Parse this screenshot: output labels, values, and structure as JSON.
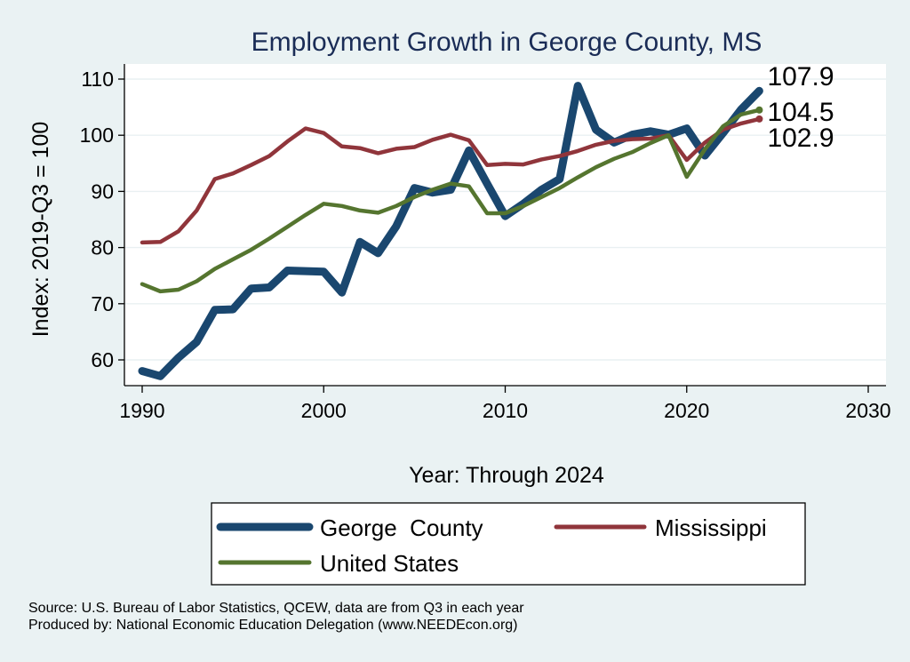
{
  "chart_data": {
    "type": "line",
    "title": "Employment Growth in George County, MS",
    "xlabel": "Year: Through 2024",
    "ylabel": "Index: 2019-Q3 = 100",
    "xlim": [
      1990,
      2030
    ],
    "ylim": [
      55,
      112
    ],
    "xticks": [
      1990,
      2000,
      2010,
      2020,
      2030
    ],
    "yticks": [
      60,
      70,
      80,
      90,
      100,
      110
    ],
    "grid": true,
    "x": [
      1990,
      1991,
      1992,
      1993,
      1994,
      1995,
      1996,
      1997,
      1998,
      1999,
      2000,
      2001,
      2002,
      2003,
      2004,
      2005,
      2006,
      2007,
      2008,
      2009,
      2010,
      2011,
      2012,
      2013,
      2014,
      2015,
      2016,
      2017,
      2018,
      2019,
      2020,
      2021,
      2022,
      2023,
      2024
    ],
    "series": [
      {
        "name": "George  County",
        "color": "#1a476f",
        "values": [
          58.0,
          57.1,
          60.4,
          63.2,
          68.9,
          69.0,
          72.7,
          72.9,
          75.9,
          75.8,
          75.7,
          72.0,
          81.0,
          79.0,
          83.8,
          90.6,
          89.8,
          90.3,
          97.3,
          91.4,
          85.6,
          87.8,
          90.3,
          92.2,
          108.8,
          101.0,
          98.7,
          100.1,
          100.7,
          100.1,
          101.2,
          96.4,
          100.4,
          104.6,
          107.9
        ],
        "end_label": "107.9"
      },
      {
        "name": "Mississippi",
        "color": "#90353b",
        "values": [
          80.9,
          81.0,
          82.9,
          86.6,
          92.2,
          93.2,
          94.7,
          96.3,
          98.9,
          101.2,
          100.4,
          98.0,
          97.7,
          96.8,
          97.6,
          97.9,
          99.2,
          100.1,
          99.1,
          94.7,
          94.9,
          94.8,
          95.7,
          96.3,
          97.2,
          98.3,
          99.0,
          99.3,
          99.4,
          100.0,
          95.6,
          98.7,
          101.0,
          102.1,
          102.9
        ],
        "end_label": "102.9"
      },
      {
        "name": "United States",
        "color": "#55752f",
        "values": [
          73.5,
          72.2,
          72.5,
          74.0,
          76.2,
          77.9,
          79.6,
          81.6,
          83.7,
          85.8,
          87.8,
          87.4,
          86.6,
          86.2,
          87.4,
          89.0,
          90.3,
          91.4,
          90.9,
          86.1,
          86.1,
          87.4,
          89.0,
          90.6,
          92.5,
          94.3,
          95.8,
          97.0,
          98.6,
          100.0,
          92.6,
          97.5,
          101.6,
          103.7,
          104.5
        ],
        "end_label": "104.5"
      }
    ]
  },
  "legend": {
    "items": [
      "George  County",
      "Mississippi",
      "United States"
    ]
  },
  "notes": {
    "source": "Source: U.S. Bureau of Labor Statistics, QCEW, data are from Q3 in each year",
    "produced_by": "Produced by: National Economic Education Delegation (www.NEEDEcon.org)"
  }
}
